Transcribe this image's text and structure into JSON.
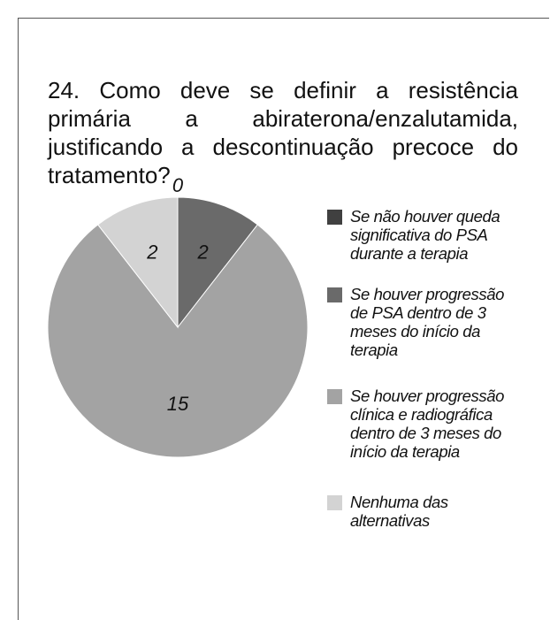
{
  "chart_data": {
    "type": "pie",
    "title": "24. Como deve se definir a resistência primária a abiraterona/enzalutamida, justificando a descontinuação precoce do tratamento?",
    "categories": [
      "Se não houver queda significativa do PSA durante a terapia",
      "Se houver progressão de PSA dentro de 3 meses do início da terapia",
      "Se houver progressão clínica e radiográfica dentro de 3 meses do início da terapia",
      "Nenhuma das alternativas"
    ],
    "values": [
      0,
      2,
      15,
      2
    ],
    "colors": [
      "#404040",
      "#6a6a6a",
      "#a3a3a3",
      "#d3d3d3"
    ]
  }
}
